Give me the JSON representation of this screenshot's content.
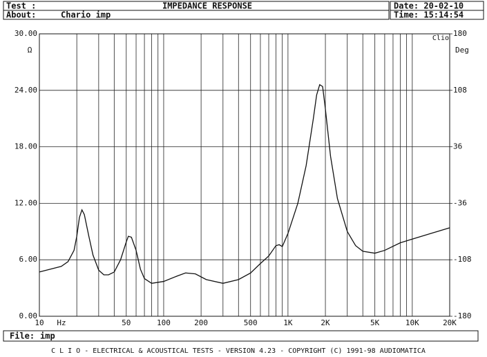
{
  "header": {
    "test_label": "Test :",
    "title": "IMPEDANCE RESPONSE",
    "date": "Date: 20-02-10",
    "about_label": "About:",
    "about": "Chario imp",
    "time": "Time: 15:14:54"
  },
  "chart_data": {
    "type": "line",
    "logx": true,
    "grid": true,
    "y_unit": "Ω",
    "y2_unit": "Deg",
    "brand": "Clio",
    "x_unit": "Hz",
    "x": [
      10,
      15,
      17,
      19,
      20,
      21,
      22,
      23,
      25,
      27,
      30,
      33,
      36,
      40,
      45,
      50,
      52,
      55,
      60,
      65,
      70,
      80,
      100,
      130,
      150,
      180,
      220,
      300,
      400,
      500,
      600,
      700,
      800,
      850,
      900,
      1000,
      1200,
      1400,
      1600,
      1700,
      1800,
      1900,
      2000,
      2200,
      2500,
      3000,
      3500,
      4000,
      5000,
      6000,
      8000,
      10000,
      15000,
      20000
    ],
    "series": [
      {
        "name": "imp",
        "color": "#111111",
        "values": [
          4.7,
          5.3,
          5.8,
          7.0,
          8.5,
          10.5,
          11.3,
          10.8,
          8.5,
          6.5,
          4.9,
          4.4,
          4.4,
          4.7,
          6.0,
          7.9,
          8.5,
          8.4,
          7.0,
          5.0,
          4.0,
          3.5,
          3.7,
          4.3,
          4.6,
          4.5,
          3.9,
          3.5,
          3.9,
          4.6,
          5.6,
          6.4,
          7.5,
          7.6,
          7.4,
          8.8,
          12,
          16,
          21,
          23.5,
          24.6,
          24.4,
          22,
          17,
          12.5,
          9.0,
          7.5,
          6.9,
          6.7,
          7.0,
          7.8,
          8.2,
          8.9,
          9.4
        ]
      }
    ],
    "xlim": [
      10,
      20000
    ],
    "xticks": [
      {
        "value": 10,
        "label": "10"
      },
      {
        "value": 20,
        "label": null
      },
      {
        "value": 30,
        "label": null
      },
      {
        "value": 40,
        "label": null
      },
      {
        "value": 50,
        "label": "50"
      },
      {
        "value": 60,
        "label": null
      },
      {
        "value": 70,
        "label": null
      },
      {
        "value": 80,
        "label": null
      },
      {
        "value": 90,
        "label": null
      },
      {
        "value": 100,
        "label": "100"
      },
      {
        "value": 200,
        "label": "200"
      },
      {
        "value": 300,
        "label": null
      },
      {
        "value": 400,
        "label": null
      },
      {
        "value": 500,
        "label": "500"
      },
      {
        "value": 600,
        "label": null
      },
      {
        "value": 700,
        "label": null
      },
      {
        "value": 800,
        "label": null
      },
      {
        "value": 900,
        "label": null
      },
      {
        "value": 1000,
        "label": "1K"
      },
      {
        "value": 2000,
        "label": "2K"
      },
      {
        "value": 3000,
        "label": null
      },
      {
        "value": 4000,
        "label": null
      },
      {
        "value": 5000,
        "label": "5K"
      },
      {
        "value": 6000,
        "label": null
      },
      {
        "value": 7000,
        "label": null
      },
      {
        "value": 8000,
        "label": null
      },
      {
        "value": 9000,
        "label": null
      },
      {
        "value": 10000,
        "label": "10K"
      },
      {
        "value": 20000,
        "label": "20K"
      }
    ],
    "ylim": [
      0,
      30
    ],
    "yticks": [
      {
        "value": 0,
        "label": "0.00"
      },
      {
        "value": 6,
        "label": "6.00"
      },
      {
        "value": 12,
        "label": "12.00"
      },
      {
        "value": 18,
        "label": "18.00"
      },
      {
        "value": 24,
        "label": "24.00"
      },
      {
        "value": 30,
        "label": "30.00"
      }
    ],
    "y2lim": [
      -180,
      180
    ],
    "y2ticks": [
      -180,
      -108,
      -36,
      36,
      108,
      180
    ]
  },
  "footer": {
    "file_label": "File:",
    "file": "imp",
    "banner": "C L I O  -  ELECTRICAL & ACOUSTICAL TESTS  -  VERSION 4.23  -  COPYRIGHT (C) 1991-98 AUDIOMATICA"
  }
}
